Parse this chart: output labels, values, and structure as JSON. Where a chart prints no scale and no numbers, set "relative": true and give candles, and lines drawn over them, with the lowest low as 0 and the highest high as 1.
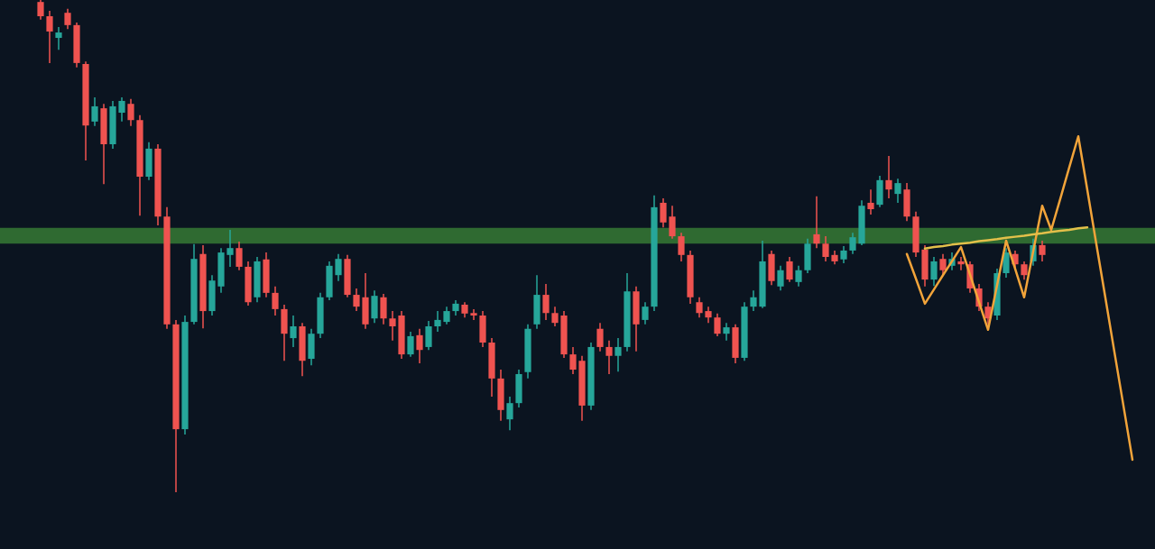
{
  "chart_data": {
    "type": "candlestick",
    "relative": true,
    "categories": [
      null,
      null,
      null,
      null,
      null,
      null,
      null,
      null,
      null,
      null,
      null,
      null,
      null,
      null,
      null,
      null,
      null,
      null,
      null,
      null,
      null,
      null,
      null,
      null,
      null,
      null,
      null,
      null,
      null,
      null,
      null,
      null,
      null,
      null,
      null,
      null,
      null,
      null,
      null,
      null,
      null,
      null,
      null,
      null,
      null,
      null,
      null,
      null,
      null,
      null,
      null,
      null,
      null,
      null,
      null,
      null,
      null,
      null,
      null,
      null,
      null,
      null,
      null,
      null,
      null,
      null,
      null,
      null,
      null,
      null,
      null,
      null,
      null,
      null,
      null,
      null,
      null,
      null,
      null,
      null,
      null,
      null,
      null,
      null,
      null,
      null,
      null,
      null,
      null,
      null,
      null,
      null,
      null,
      null,
      null,
      null,
      null,
      null,
      null,
      null,
      null,
      null,
      null,
      null,
      null,
      null,
      null,
      null,
      null,
      null,
      null,
      null,
      null,
      null,
      null,
      null,
      null,
      null,
      null,
      null,
      null,
      null
    ],
    "ohlc": [
      [
        0.996,
        1.0,
        0.96,
        0.967
      ],
      [
        0.967,
        0.978,
        0.872,
        0.936
      ],
      [
        0.923,
        0.945,
        0.899,
        0.934
      ],
      [
        0.974,
        0.982,
        0.941,
        0.949
      ],
      [
        0.949,
        0.954,
        0.863,
        0.872
      ],
      [
        0.87,
        0.875,
        0.674,
        0.745
      ],
      [
        0.753,
        0.802,
        0.744,
        0.784
      ],
      [
        0.78,
        0.789,
        0.626,
        0.707
      ],
      [
        0.707,
        0.795,
        0.698,
        0.784
      ],
      [
        0.771,
        0.802,
        0.753,
        0.795
      ],
      [
        0.789,
        0.799,
        0.744,
        0.756
      ],
      [
        0.756,
        0.766,
        0.562,
        0.641
      ],
      [
        0.641,
        0.711,
        0.634,
        0.698
      ],
      [
        0.698,
        0.707,
        0.542,
        0.56
      ],
      [
        0.56,
        0.579,
        0.332,
        0.341
      ],
      [
        0.341,
        0.35,
        0.0,
        0.128
      ],
      [
        0.128,
        0.359,
        0.117,
        0.346
      ],
      [
        0.346,
        0.504,
        0.341,
        0.474
      ],
      [
        0.484,
        0.502,
        0.333,
        0.368
      ],
      [
        0.368,
        0.441,
        0.359,
        0.43
      ],
      [
        0.418,
        0.496,
        0.405,
        0.487
      ],
      [
        0.482,
        0.533,
        0.458,
        0.496
      ],
      [
        0.496,
        0.509,
        0.451,
        0.458
      ],
      [
        0.458,
        0.469,
        0.379,
        0.386
      ],
      [
        0.396,
        0.478,
        0.386,
        0.469
      ],
      [
        0.473,
        0.487,
        0.396,
        0.405
      ],
      [
        0.405,
        0.418,
        0.359,
        0.372
      ],
      [
        0.372,
        0.381,
        0.267,
        0.322
      ],
      [
        0.313,
        0.359,
        0.295,
        0.337
      ],
      [
        0.337,
        0.344,
        0.236,
        0.267
      ],
      [
        0.271,
        0.332,
        0.258,
        0.322
      ],
      [
        0.322,
        0.405,
        0.313,
        0.396
      ],
      [
        0.396,
        0.469,
        0.39,
        0.46
      ],
      [
        0.441,
        0.484,
        0.429,
        0.474
      ],
      [
        0.474,
        0.482,
        0.396,
        0.401
      ],
      [
        0.401,
        0.414,
        0.368,
        0.377
      ],
      [
        0.396,
        0.445,
        0.332,
        0.341
      ],
      [
        0.353,
        0.41,
        0.344,
        0.399
      ],
      [
        0.396,
        0.403,
        0.341,
        0.353
      ],
      [
        0.353,
        0.368,
        0.308,
        0.337
      ],
      [
        0.359,
        0.368,
        0.271,
        0.28
      ],
      [
        0.28,
        0.326,
        0.275,
        0.317
      ],
      [
        0.319,
        0.332,
        0.262,
        0.289
      ],
      [
        0.295,
        0.348,
        0.289,
        0.337
      ],
      [
        0.337,
        0.368,
        0.326,
        0.35
      ],
      [
        0.346,
        0.377,
        0.341,
        0.368
      ],
      [
        0.368,
        0.39,
        0.359,
        0.383
      ],
      [
        0.381,
        0.386,
        0.355,
        0.363
      ],
      [
        0.364,
        0.372,
        0.35,
        0.359
      ],
      [
        0.359,
        0.368,
        0.295,
        0.304
      ],
      [
        0.304,
        0.313,
        0.194,
        0.231
      ],
      [
        0.231,
        0.249,
        0.145,
        0.167
      ],
      [
        0.148,
        0.194,
        0.126,
        0.181
      ],
      [
        0.181,
        0.249,
        0.172,
        0.24
      ],
      [
        0.244,
        0.341,
        0.231,
        0.332
      ],
      [
        0.341,
        0.441,
        0.332,
        0.401
      ],
      [
        0.401,
        0.423,
        0.35,
        0.364
      ],
      [
        0.364,
        0.377,
        0.337,
        0.344
      ],
      [
        0.359,
        0.368,
        0.273,
        0.28
      ],
      [
        0.28,
        0.295,
        0.24,
        0.249
      ],
      [
        0.267,
        0.277,
        0.145,
        0.176
      ],
      [
        0.176,
        0.304,
        0.167,
        0.295
      ],
      [
        0.332,
        0.344,
        0.286,
        0.295
      ],
      [
        0.295,
        0.308,
        0.24,
        0.277
      ],
      [
        0.277,
        0.313,
        0.245,
        0.295
      ],
      [
        0.295,
        0.445,
        0.286,
        0.408
      ],
      [
        0.408,
        0.418,
        0.286,
        0.341
      ],
      [
        0.35,
        0.386,
        0.341,
        0.377
      ],
      [
        0.377,
        0.603,
        0.368,
        0.579
      ],
      [
        0.588,
        0.597,
        0.538,
        0.548
      ],
      [
        0.56,
        0.582,
        0.515,
        0.52
      ],
      [
        0.52,
        0.527,
        0.469,
        0.482
      ],
      [
        0.482,
        0.491,
        0.383,
        0.396
      ],
      [
        0.386,
        0.396,
        0.355,
        0.364
      ],
      [
        0.368,
        0.377,
        0.344,
        0.355
      ],
      [
        0.355,
        0.363,
        0.317,
        0.322
      ],
      [
        0.322,
        0.344,
        0.308,
        0.335
      ],
      [
        0.335,
        0.341,
        0.262,
        0.273
      ],
      [
        0.273,
        0.386,
        0.267,
        0.377
      ],
      [
        0.377,
        0.41,
        0.368,
        0.396
      ],
      [
        0.377,
        0.511,
        0.374,
        0.469
      ],
      [
        0.484,
        0.491,
        0.421,
        0.429
      ],
      [
        0.418,
        0.46,
        0.41,
        0.451
      ],
      [
        0.469,
        0.478,
        0.427,
        0.432
      ],
      [
        0.427,
        0.46,
        0.418,
        0.451
      ],
      [
        0.451,
        0.515,
        0.445,
        0.505
      ],
      [
        0.524,
        0.601,
        0.496,
        0.505
      ],
      [
        0.505,
        0.52,
        0.469,
        0.478
      ],
      [
        0.482,
        0.491,
        0.463,
        0.469
      ],
      [
        0.473,
        0.5,
        0.465,
        0.491
      ],
      [
        0.491,
        0.527,
        0.484,
        0.518
      ],
      [
        0.505,
        0.593,
        0.502,
        0.582
      ],
      [
        0.588,
        0.615,
        0.564,
        0.575
      ],
      [
        0.584,
        0.643,
        0.579,
        0.634
      ],
      [
        0.634,
        0.683,
        0.597,
        0.615
      ],
      [
        0.606,
        0.637,
        0.588,
        0.628
      ],
      [
        0.615,
        0.628,
        0.551,
        0.56
      ],
      [
        0.56,
        0.57,
        0.478,
        0.487
      ],
      [
        0.493,
        0.502,
        0.418,
        0.432
      ],
      [
        0.432,
        0.478,
        0.419,
        0.469
      ],
      [
        0.474,
        0.484,
        0.441,
        0.451
      ],
      [
        0.46,
        0.487,
        0.451,
        0.474
      ],
      [
        0.469,
        0.478,
        0.451,
        0.463
      ],
      [
        0.463,
        0.469,
        0.405,
        0.414
      ],
      [
        0.414,
        0.423,
        0.368,
        0.377
      ],
      [
        0.377,
        0.386,
        0.341,
        0.353
      ],
      [
        0.359,
        0.454,
        0.35,
        0.445
      ],
      [
        0.445,
        0.496,
        0.436,
        0.487
      ],
      [
        0.484,
        0.491,
        0.454,
        0.463
      ],
      [
        0.463,
        0.469,
        0.432,
        0.441
      ],
      [
        0.469,
        0.515,
        0.46,
        0.502
      ],
      [
        0.502,
        0.511,
        0.469,
        0.482
      ],
      null,
      null,
      null,
      null,
      null,
      null,
      null,
      null,
      null,
      null
    ],
    "colors": [
      "#ef5350",
      "#ef5350",
      "#26a69a",
      "#ef5350",
      "#ef5350",
      "#ef5350",
      "#26a69a",
      "#ef5350",
      "#26a69a",
      "#26a69a",
      "#ef5350",
      "#ef5350",
      "#26a69a",
      "#ef5350",
      "#ef5350",
      "#ef5350",
      "#26a69a",
      "#26a69a",
      "#ef5350",
      "#26a69a",
      "#26a69a",
      "#26a69a",
      "#ef5350",
      "#ef5350",
      "#26a69a",
      "#ef5350",
      "#ef5350",
      "#ef5350",
      "#26a69a",
      "#ef5350",
      "#26a69a",
      "#26a69a",
      "#26a69a",
      "#26a69a",
      "#ef5350",
      "#ef5350",
      "#ef5350",
      "#26a69a",
      "#ef5350",
      "#ef5350",
      "#ef5350",
      "#26a69a",
      "#ef5350",
      "#26a69a",
      "#26a69a",
      "#26a69a",
      "#26a69a",
      "#ef5350",
      "#ef5350",
      "#ef5350",
      "#ef5350",
      "#ef5350",
      "#26a69a",
      "#26a69a",
      "#26a69a",
      "#26a69a",
      "#ef5350",
      "#ef5350",
      "#ef5350",
      "#ef5350",
      "#ef5350",
      "#26a69a",
      "#ef5350",
      "#ef5350",
      "#26a69a",
      "#26a69a",
      "#ef5350",
      "#26a69a",
      "#26a69a",
      "#ef5350",
      "#ef5350",
      "#ef5350",
      "#ef5350",
      "#ef5350",
      "#ef5350",
      "#ef5350",
      "#26a69a",
      "#ef5350",
      "#26a69a",
      "#26a69a",
      "#26a69a",
      "#ef5350",
      "#26a69a",
      "#ef5350",
      "#26a69a",
      "#26a69a",
      "#ef5350",
      "#ef5350",
      "#ef5350",
      "#26a69a",
      "#26a69a",
      "#26a69a",
      "#ef5350",
      "#26a69a",
      "#ef5350",
      "#26a69a",
      "#ef5350",
      "#ef5350",
      "#ef5350",
      "#26a69a",
      "#ef5350",
      "#26a69a",
      "#ef5350",
      "#ef5350",
      "#ef5350",
      "#ef5350",
      "#26a69a",
      "#26a69a",
      "#ef5350",
      "#ef5350",
      "#26a69a",
      "#ef5350",
      null,
      null,
      null,
      null,
      null,
      null,
      null,
      null,
      null,
      null
    ],
    "bands": [
      {
        "axis": "y",
        "from": 0.505,
        "to": 0.537,
        "color": "#2f6a31"
      }
    ],
    "series": [
      {
        "type": "line",
        "color": "#f2a43a",
        "values": [
          null,
          null,
          null,
          null,
          null,
          null,
          null,
          null,
          null,
          null,
          null,
          null,
          null,
          null,
          null,
          null,
          null,
          null,
          null,
          null,
          null,
          null,
          null,
          null,
          null,
          null,
          null,
          null,
          null,
          null,
          null,
          null,
          null,
          null,
          null,
          null,
          null,
          null,
          null,
          null,
          null,
          null,
          null,
          null,
          null,
          null,
          null,
          null,
          null,
          null,
          null,
          null,
          null,
          null,
          null,
          null,
          null,
          null,
          null,
          null,
          null,
          null,
          null,
          null,
          null,
          null,
          null,
          null,
          null,
          null,
          null,
          null,
          null,
          null,
          null,
          null,
          null,
          null,
          null,
          null,
          null,
          null,
          null,
          null,
          null,
          null,
          null,
          null,
          null,
          null,
          null,
          null,
          null,
          null,
          null,
          null,
          0.484,
          0.434,
          0.383,
          0.412,
          0.441,
          0.469,
          0.498,
          0.442,
          0.386,
          0.33,
          0.421,
          0.511,
          0.454,
          0.396,
          0.489,
          0.582,
          0.533,
          0.596,
          0.66,
          0.723,
          0.614,
          0.504,
          0.395,
          0.285,
          0.176,
          0.066
        ]
      },
      {
        "type": "line",
        "color": "#e3c04a",
        "values": [
          null,
          null,
          null,
          null,
          null,
          null,
          null,
          null,
          null,
          null,
          null,
          null,
          null,
          null,
          null,
          null,
          null,
          null,
          null,
          null,
          null,
          null,
          null,
          null,
          null,
          null,
          null,
          null,
          null,
          null,
          null,
          null,
          null,
          null,
          null,
          null,
          null,
          null,
          null,
          null,
          null,
          null,
          null,
          null,
          null,
          null,
          null,
          null,
          null,
          null,
          null,
          null,
          null,
          null,
          null,
          null,
          null,
          null,
          null,
          null,
          null,
          null,
          null,
          null,
          null,
          null,
          null,
          null,
          null,
          null,
          null,
          null,
          null,
          null,
          null,
          null,
          null,
          null,
          null,
          null,
          null,
          null,
          null,
          null,
          null,
          null,
          null,
          null,
          null,
          null,
          null,
          null,
          null,
          null,
          null,
          null,
          null,
          null,
          0.495,
          0.498,
          0.5,
          0.503,
          0.505,
          0.507,
          0.51,
          0.512,
          0.514,
          0.517,
          0.519,
          0.521,
          0.524,
          0.526,
          0.529,
          0.531,
          0.533,
          0.536,
          0.538,
          null,
          null,
          null,
          null,
          null
        ]
      }
    ]
  }
}
